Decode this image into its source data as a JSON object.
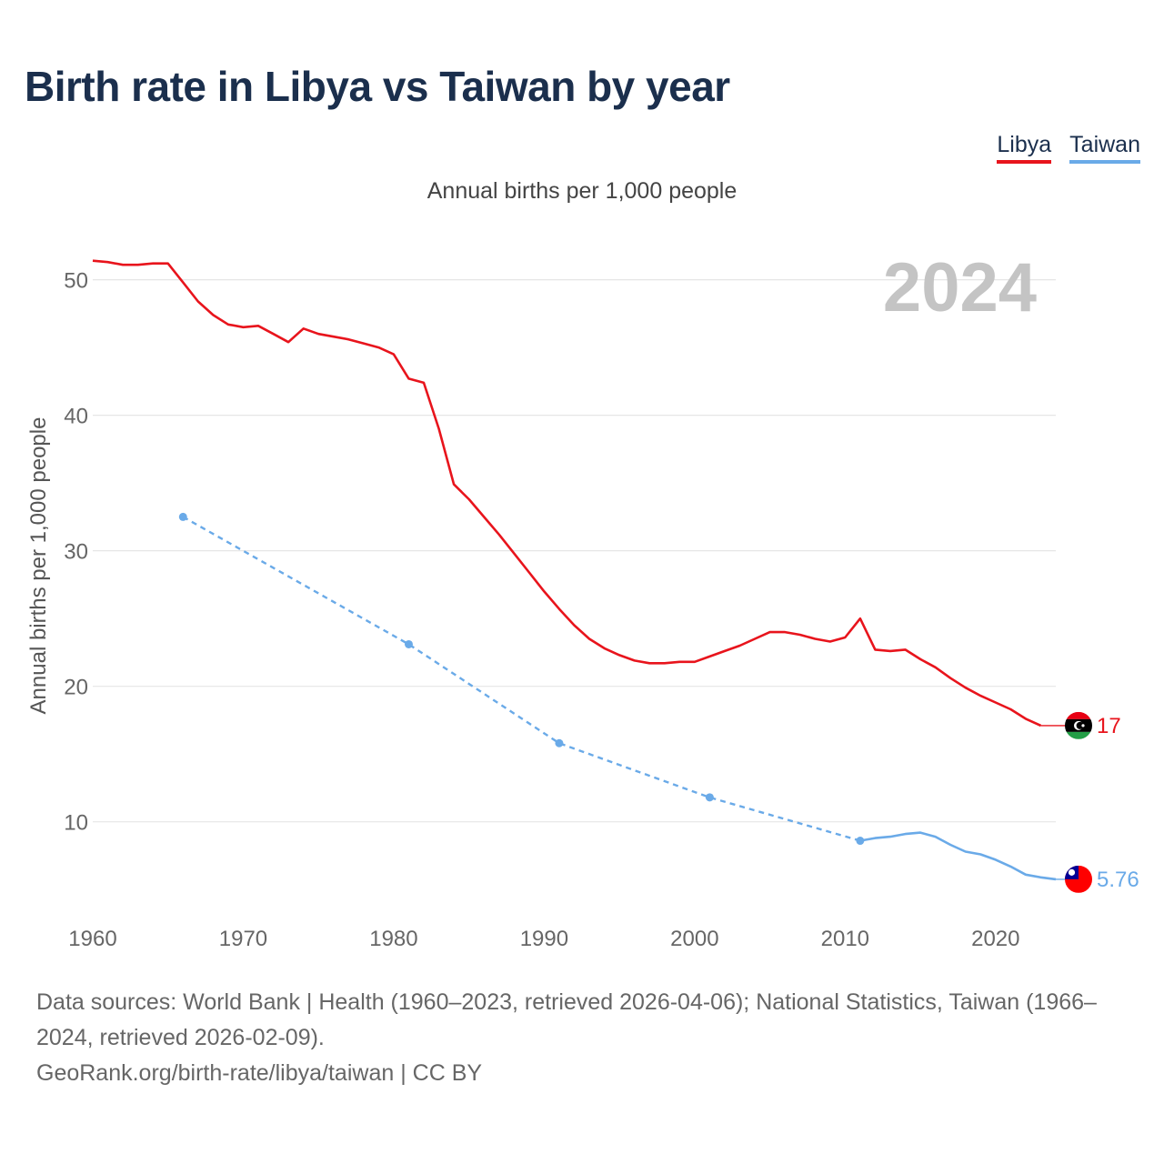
{
  "title": "Birth rate in Libya vs Taiwan by year",
  "subtitle": "Annual births per 1,000 people",
  "colors": {
    "libya": "#e8141c",
    "taiwan": "#6aaae8",
    "grid": "#e6e6e6",
    "year": "#c4c4c4",
    "axis_text": "#666666"
  },
  "legend": [
    {
      "label": "Libya",
      "color": "#e8141c"
    },
    {
      "label": "Taiwan",
      "color": "#6aaae8"
    }
  ],
  "chart_data": {
    "type": "line",
    "title": "Birth rate in Libya vs Taiwan by year",
    "ylabel": "Annual births per 1,000 people",
    "xlabel": "",
    "year_watermark": "2024",
    "xlim": [
      1960,
      2025
    ],
    "ylim": [
      3,
      54
    ],
    "xticks": [
      1960,
      1970,
      1980,
      1990,
      2000,
      2010,
      2020
    ],
    "yticks": [
      10,
      20,
      30,
      40,
      50
    ],
    "series": [
      {
        "name": "Libya",
        "end_label": "17",
        "flag_icon": "libya-flag-icon",
        "points": [
          [
            1960,
            51.4
          ],
          [
            1961,
            51.3
          ],
          [
            1962,
            51.1
          ],
          [
            1963,
            51.1
          ],
          [
            1964,
            51.2
          ],
          [
            1965,
            51.2
          ],
          [
            1966,
            49.8
          ],
          [
            1967,
            48.4
          ],
          [
            1968,
            47.4
          ],
          [
            1969,
            46.7
          ],
          [
            1970,
            46.5
          ],
          [
            1971,
            46.6
          ],
          [
            1972,
            46.0
          ],
          [
            1973,
            45.4
          ],
          [
            1974,
            46.4
          ],
          [
            1975,
            46.0
          ],
          [
            1976,
            45.8
          ],
          [
            1977,
            45.6
          ],
          [
            1978,
            45.3
          ],
          [
            1979,
            45.0
          ],
          [
            1980,
            44.5
          ],
          [
            1981,
            42.7
          ],
          [
            1982,
            42.4
          ],
          [
            1983,
            39.0
          ],
          [
            1984,
            34.9
          ],
          [
            1985,
            33.8
          ],
          [
            1986,
            32.5
          ],
          [
            1987,
            31.2
          ],
          [
            1988,
            29.8
          ],
          [
            1989,
            28.4
          ],
          [
            1990,
            27.0
          ],
          [
            1991,
            25.7
          ],
          [
            1992,
            24.5
          ],
          [
            1993,
            23.5
          ],
          [
            1994,
            22.8
          ],
          [
            1995,
            22.3
          ],
          [
            1996,
            21.9
          ],
          [
            1997,
            21.7
          ],
          [
            1998,
            21.7
          ],
          [
            1999,
            21.8
          ],
          [
            2000,
            21.8
          ],
          [
            2001,
            22.2
          ],
          [
            2002,
            22.6
          ],
          [
            2003,
            23.0
          ],
          [
            2004,
            23.5
          ],
          [
            2005,
            24.0
          ],
          [
            2006,
            24.0
          ],
          [
            2007,
            23.8
          ],
          [
            2008,
            23.5
          ],
          [
            2009,
            23.3
          ],
          [
            2010,
            23.6
          ],
          [
            2011,
            25.0
          ],
          [
            2012,
            22.7
          ],
          [
            2013,
            22.6
          ],
          [
            2014,
            22.7
          ],
          [
            2015,
            22.0
          ],
          [
            2016,
            21.4
          ],
          [
            2017,
            20.6
          ],
          [
            2018,
            19.9
          ],
          [
            2019,
            19.3
          ],
          [
            2020,
            18.8
          ],
          [
            2021,
            18.3
          ],
          [
            2022,
            17.6
          ],
          [
            2023,
            17.1
          ]
        ],
        "extension": [
          [
            2023,
            17.1
          ],
          [
            2025,
            17.1
          ]
        ]
      },
      {
        "name": "Taiwan",
        "end_label": "5.76",
        "flag_icon": "taiwan-flag-icon",
        "sparse_points": [
          [
            1966,
            32.5
          ],
          [
            1981,
            23.1
          ],
          [
            1991,
            15.8
          ],
          [
            2001,
            11.8
          ],
          [
            2011,
            8.6
          ]
        ],
        "points": [
          [
            2011,
            8.6
          ],
          [
            2012,
            8.8
          ],
          [
            2013,
            8.9
          ],
          [
            2014,
            9.1
          ],
          [
            2015,
            9.2
          ],
          [
            2016,
            8.9
          ],
          [
            2017,
            8.3
          ],
          [
            2018,
            7.8
          ],
          [
            2019,
            7.6
          ],
          [
            2020,
            7.2
          ],
          [
            2021,
            6.7
          ],
          [
            2022,
            6.1
          ],
          [
            2023,
            5.9
          ],
          [
            2024,
            5.76
          ]
        ],
        "extension": [
          [
            2024,
            5.76
          ],
          [
            2025,
            5.76
          ]
        ]
      }
    ]
  },
  "footer": {
    "sources": "Data sources: World Bank | Health (1960–2023, retrieved 2026-04-06); National Statistics, Taiwan (1966–2024, retrieved 2026-02-09).",
    "link": "GeoRank.org/birth-rate/libya/taiwan | CC BY"
  }
}
